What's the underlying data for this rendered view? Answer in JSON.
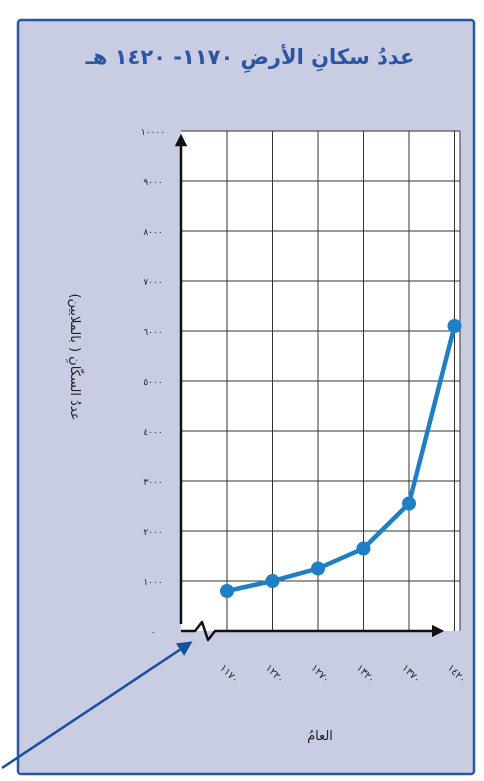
{
  "chart_data": {
    "type": "line",
    "title": "عددُ سكانِ الأرضِ ١١٧٠- ١٤٢٠ هـ",
    "xlabel": "العامُ",
    "ylabel": "عددُ السكّانِ ( بالملايين)",
    "x": [
      1170,
      1220,
      1270,
      1320,
      1370,
      1420
    ],
    "x_tick_labels": [
      "١١٧٠",
      "١٢٢٠",
      "١٢٧٠",
      "١٣٢٠",
      "١٣٧٠",
      "١٤٢٠"
    ],
    "y_tick_values": [
      0,
      1000,
      2000,
      3000,
      4000,
      5000,
      6000,
      7000,
      8000,
      9000,
      10000
    ],
    "y_tick_labels": [
      "٠",
      "١٠٠٠",
      "٢٠٠٠",
      "٣٠٠٠",
      "٤٠٠٠",
      "٥٠٠٠",
      "٦٠٠٠",
      "٧٠٠٠",
      "٨٠٠٠",
      "٩٠٠٠",
      "١٠٠٠٠"
    ],
    "ylim": [
      0,
      10000
    ],
    "series": [
      {
        "values": [
          800,
          1000,
          1250,
          1650,
          2550,
          6100
        ]
      }
    ],
    "grid": true,
    "axis_break_at_origin": true,
    "colors": {
      "line": "#1f7fc4",
      "marker": "#1f7fc4",
      "panel_bg": "#c9cde4",
      "frame": "#2b55a4",
      "grid_bg": "#ffffff",
      "grid_line": "#333333",
      "title_text": "#2b55a4",
      "pointer_arrow": "#1a4f9c"
    }
  }
}
